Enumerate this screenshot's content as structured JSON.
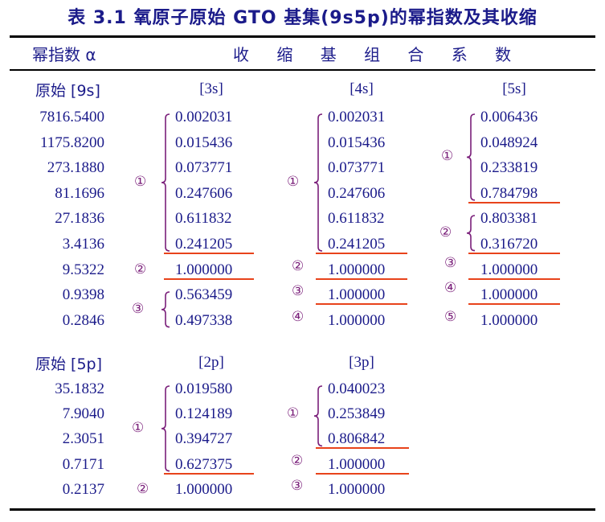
{
  "title": "表 3.1   氧原子原始 GTO 基集(9s5p)的幂指数及其收缩",
  "header": {
    "exponent_label": "幂指数 α",
    "coef_label": "收 缩 基 组 合 系 数"
  },
  "s_block": {
    "label": "原始 [9s]",
    "columns": [
      "[3s]",
      "[4s]",
      "[5s]"
    ],
    "exponents": [
      "7816.5400",
      "1175.8200",
      "273.1880",
      "81.1696",
      "27.1836",
      "3.4136",
      "9.5322",
      "0.9398",
      "0.2846"
    ],
    "c3s": [
      "0.002031",
      "0.015436",
      "0.073771",
      "0.247606",
      "0.611832",
      "0.241205",
      "1.000000",
      "0.563459",
      "0.497338"
    ],
    "c4s": [
      "0.002031",
      "0.015436",
      "0.073771",
      "0.247606",
      "0.611832",
      "0.241205",
      "1.000000",
      "1.000000",
      "1.000000"
    ],
    "c5s": [
      "0.006436",
      "0.048924",
      "0.233819",
      "0.784798",
      "0.803381",
      "0.316720",
      "1.000000",
      "1.000000",
      "1.000000"
    ]
  },
  "p_block": {
    "label": "原始 [5p]",
    "columns": [
      "[2p]",
      "[3p]"
    ],
    "exponents": [
      "35.1832",
      "7.9040",
      "2.3051",
      "0.7171",
      "0.2137"
    ],
    "c2p": [
      "0.019580",
      "0.124189",
      "0.394727",
      "0.627375",
      "1.000000"
    ],
    "c3p": [
      "0.040023",
      "0.253849",
      "0.806842",
      "1.000000",
      "1.000000"
    ]
  },
  "markers": {
    "m1": "①",
    "m2": "②",
    "m3": "③",
    "m4": "④",
    "m5": "⑤"
  },
  "colors": {
    "text": "#1b1b8a",
    "marker": "#7a1f7a",
    "underline": "#e8431b"
  }
}
